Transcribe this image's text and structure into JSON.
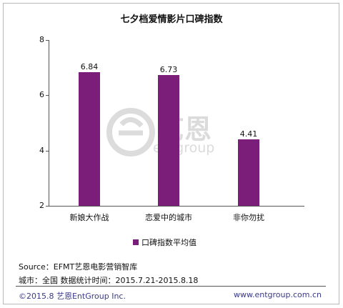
{
  "chart_data": {
    "type": "bar",
    "title": "七夕档爱情影片口碑指数",
    "categories": [
      "新娘大作战",
      "恋爱中的城市",
      "非你勿扰"
    ],
    "values": [
      6.84,
      6.73,
      4.41
    ],
    "value_labels": [
      "6.84",
      "6.73",
      "4.41"
    ],
    "ylim": [
      2,
      8
    ],
    "yticks": [
      "2",
      "4",
      "6",
      "8"
    ],
    "legend": "口碑指数平均值",
    "legend_position": "bottom",
    "grid": false,
    "bar_color": "#7b1e7a"
  },
  "watermark": {
    "cn": "艺恩",
    "en": "entgroup"
  },
  "footnotes": {
    "source": "Source：EFMT艺恩电影营销智库",
    "scope": "城市：全国   数据统计时间：2015.7.21-2015.8.18"
  },
  "footer": {
    "left": "©2015.8 艺恩EntGroup Inc.",
    "right": "www.entgroup.com.cn"
  }
}
